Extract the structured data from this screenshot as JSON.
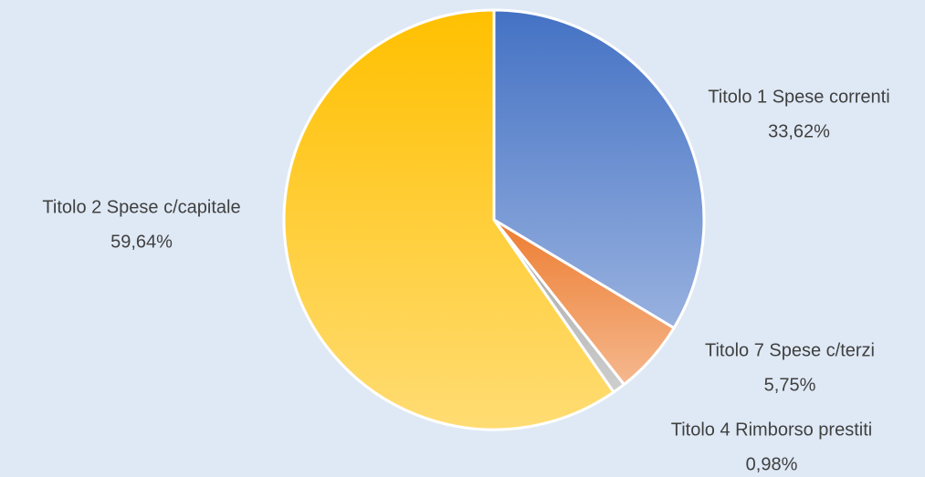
{
  "chart_data": {
    "type": "pie",
    "categories": [
      "Titolo 1 Spese correnti",
      "Titolo 7 Spese c/terzi",
      "Titolo 4 Rimborso prestiti",
      "Titolo 2 Spese c/capitale"
    ],
    "values": [
      33.62,
      5.75,
      0.98,
      59.64
    ],
    "value_labels": [
      "33,62%",
      "5,75%",
      "0,98%",
      "59,64%"
    ],
    "colors": [
      "#4472c4",
      "#ed7d31",
      "#a5a5a5",
      "#ffc000"
    ]
  }
}
